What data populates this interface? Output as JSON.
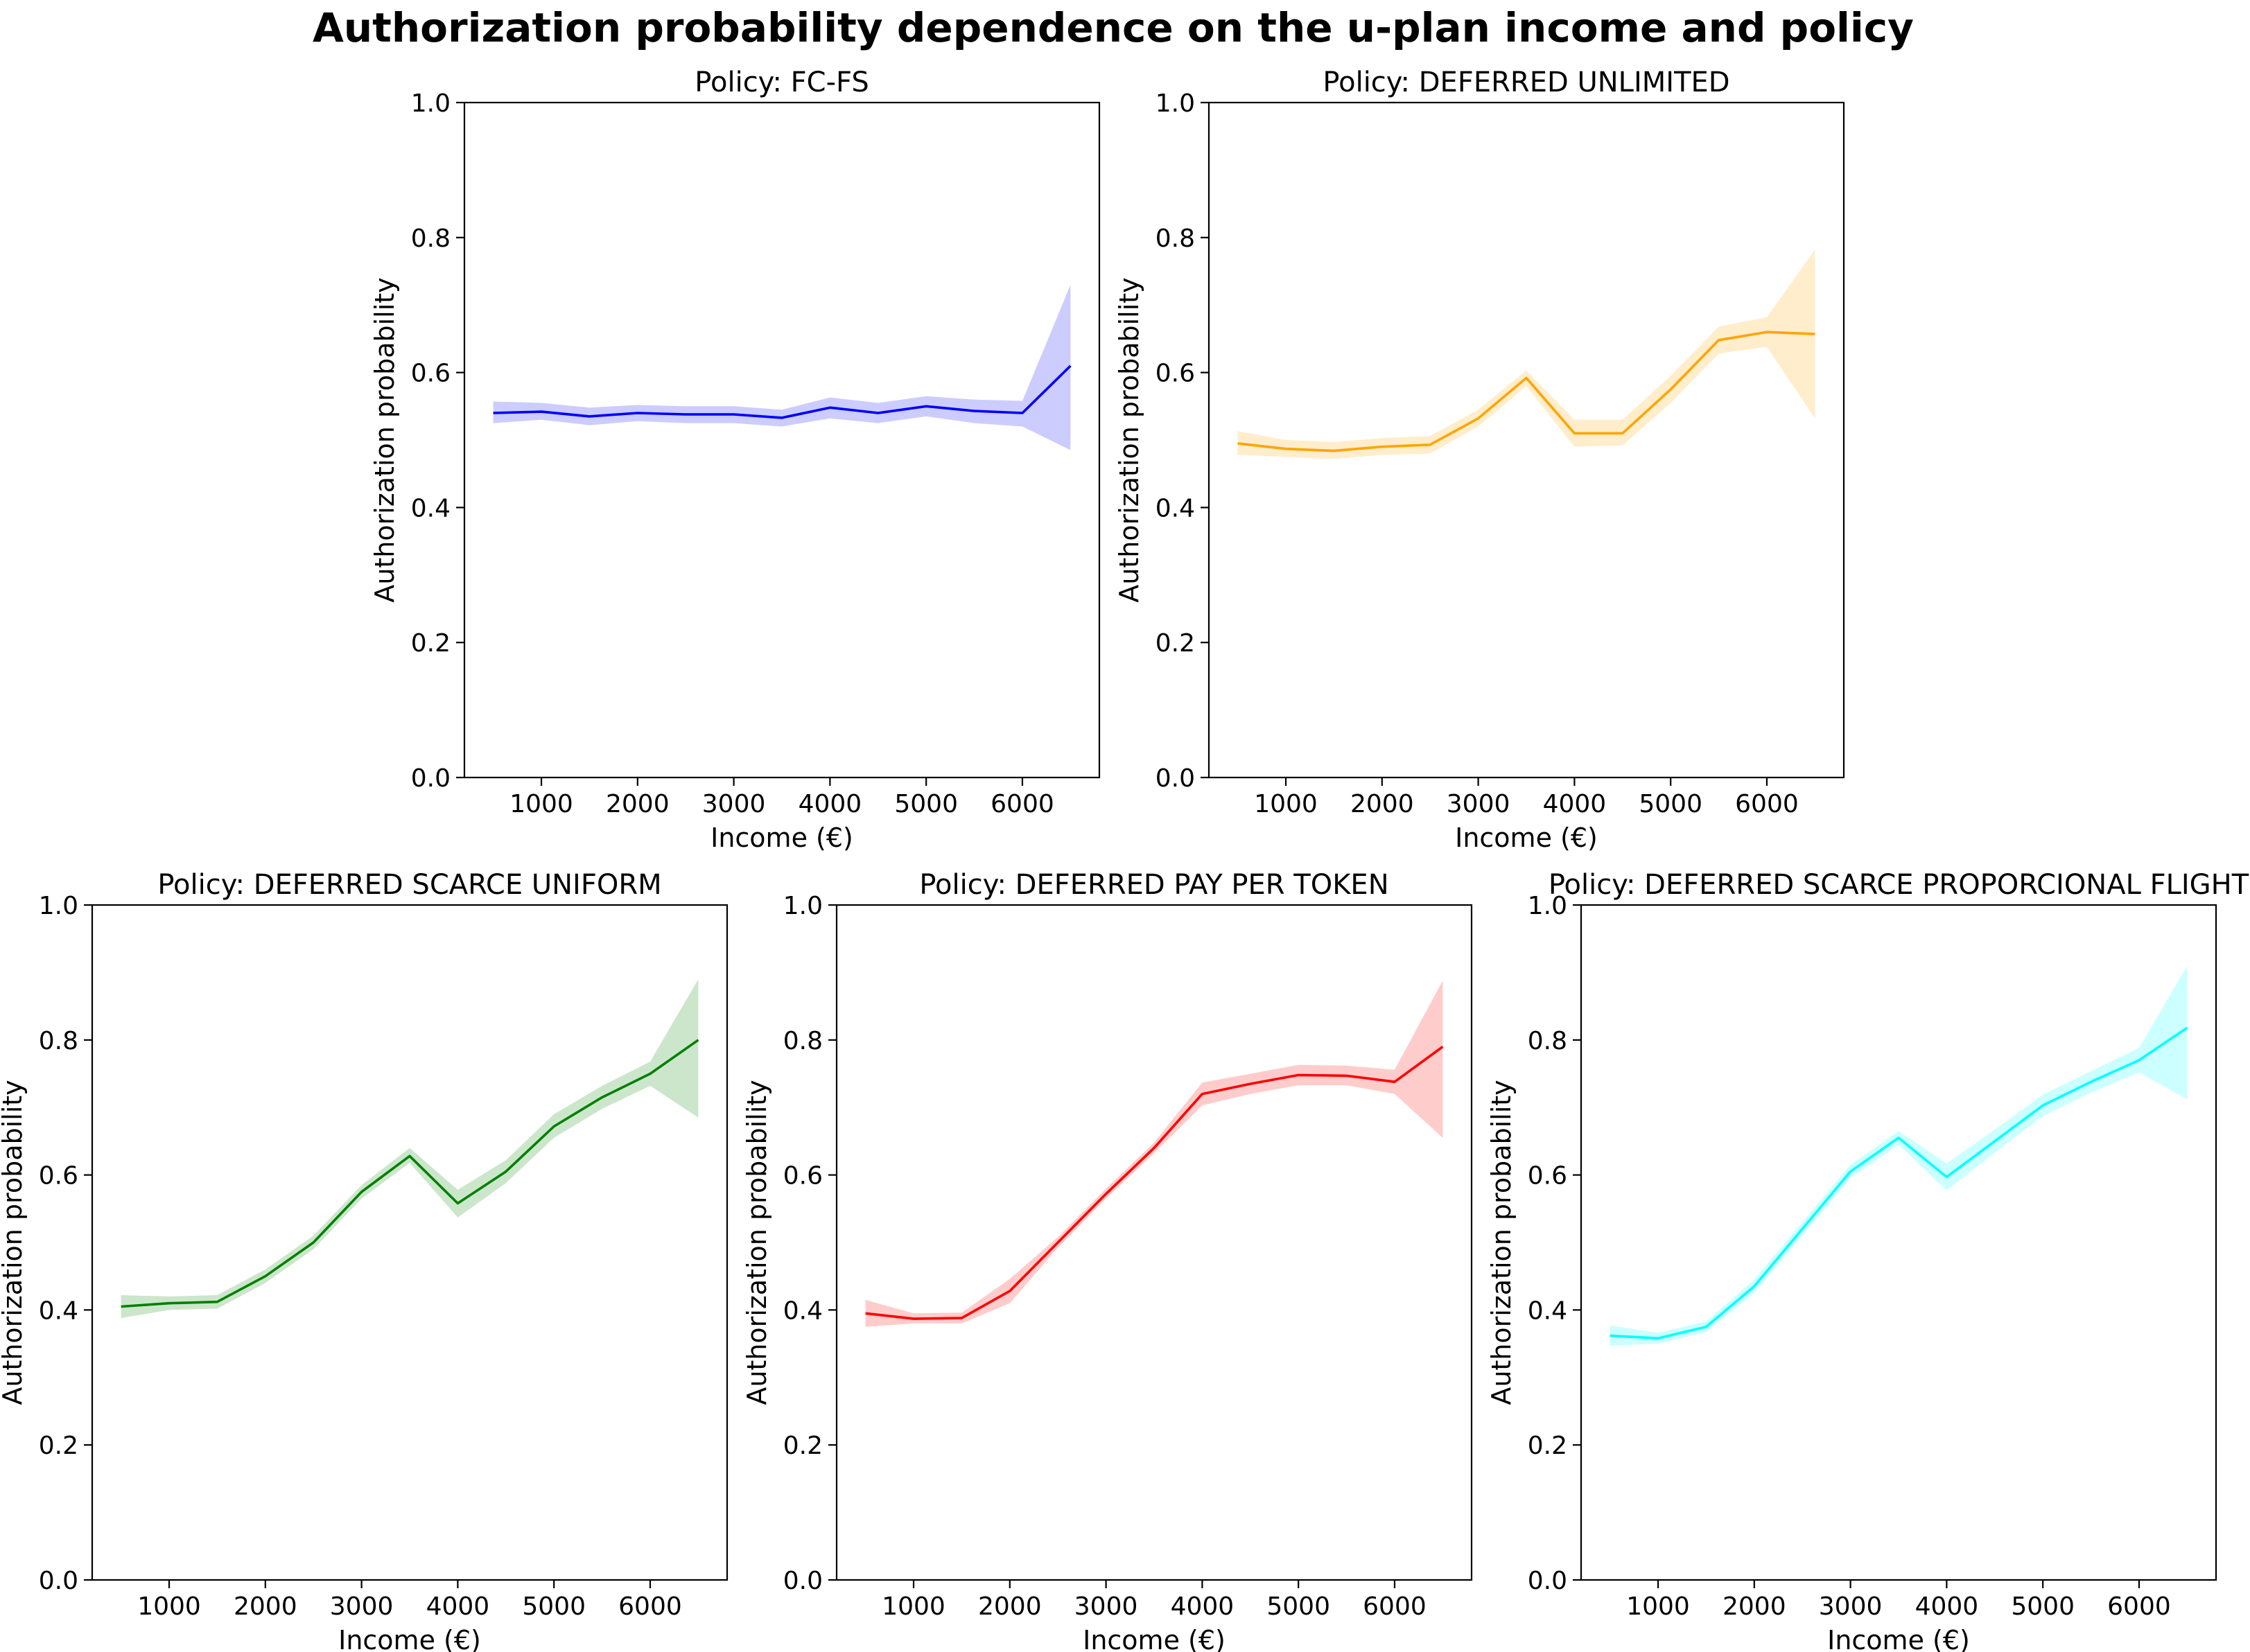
{
  "figure_title": "Authorization probability dependence on the u-plan income and policy",
  "chart_data": [
    {
      "type": "line",
      "title": "Policy: FC-FS",
      "xlabel": "Income (€)",
      "ylabel": "Authorization probability",
      "xlim": [
        200,
        6800
      ],
      "ylim": [
        0.0,
        1.0
      ],
      "xticks": [
        1000,
        2000,
        3000,
        4000,
        5000,
        6000
      ],
      "yticks": [
        "0.0",
        "0.2",
        "0.4",
        "0.6",
        "0.8",
        "1.0"
      ],
      "color": "#0000ff",
      "series": [
        {
          "name": "FC-FS",
          "x": [
            500,
            1000,
            1500,
            2000,
            2500,
            3000,
            3500,
            4000,
            4500,
            5000,
            5500,
            6000,
            6500
          ],
          "y": [
            0.54,
            0.542,
            0.535,
            0.54,
            0.538,
            0.538,
            0.533,
            0.548,
            0.54,
            0.55,
            0.543,
            0.54,
            0.61
          ],
          "lower": [
            0.525,
            0.53,
            0.522,
            0.528,
            0.525,
            0.525,
            0.52,
            0.532,
            0.525,
            0.535,
            0.525,
            0.52,
            0.485
          ],
          "upper": [
            0.557,
            0.555,
            0.548,
            0.552,
            0.55,
            0.55,
            0.545,
            0.563,
            0.555,
            0.565,
            0.56,
            0.558,
            0.73
          ]
        }
      ]
    },
    {
      "type": "line",
      "title": "Policy: DEFERRED UNLIMITED",
      "xlabel": "Income (€)",
      "ylabel": "Authorization probability",
      "xlim": [
        200,
        6800
      ],
      "ylim": [
        0.0,
        1.0
      ],
      "xticks": [
        1000,
        2000,
        3000,
        4000,
        5000,
        6000
      ],
      "yticks": [
        "0.0",
        "0.2",
        "0.4",
        "0.6",
        "0.8",
        "1.0"
      ],
      "color": "#ffa500",
      "series": [
        {
          "name": "DEFERRED UNLIMITED",
          "x": [
            500,
            1000,
            1500,
            2000,
            2500,
            3000,
            3500,
            4000,
            4500,
            5000,
            5500,
            6000,
            6500
          ],
          "y": [
            0.495,
            0.487,
            0.484,
            0.49,
            0.493,
            0.532,
            0.592,
            0.51,
            0.51,
            0.575,
            0.648,
            0.66,
            0.657
          ],
          "lower": [
            0.478,
            0.475,
            0.472,
            0.478,
            0.48,
            0.52,
            0.58,
            0.49,
            0.492,
            0.555,
            0.628,
            0.638,
            0.532
          ],
          "upper": [
            0.513,
            0.5,
            0.497,
            0.503,
            0.506,
            0.545,
            0.603,
            0.53,
            0.53,
            0.595,
            0.668,
            0.682,
            0.782
          ]
        }
      ]
    },
    {
      "type": "line",
      "title": "Policy: DEFERRED SCARCE UNIFORM",
      "xlabel": "Income (€)",
      "ylabel": "Authorization probability",
      "xlim": [
        200,
        6800
      ],
      "ylim": [
        0.0,
        1.0
      ],
      "xticks": [
        1000,
        2000,
        3000,
        4000,
        5000,
        6000
      ],
      "yticks": [
        "0.0",
        "0.2",
        "0.4",
        "0.6",
        "0.8",
        "1.0"
      ],
      "color": "#008000",
      "series": [
        {
          "name": "DEFERRED SCARCE UNIFORM",
          "x": [
            500,
            1000,
            1500,
            2000,
            2500,
            3000,
            3500,
            4000,
            4500,
            5000,
            5500,
            6000,
            6500
          ],
          "y": [
            0.405,
            0.41,
            0.412,
            0.45,
            0.5,
            0.575,
            0.628,
            0.558,
            0.605,
            0.672,
            0.715,
            0.75,
            0.8
          ],
          "lower": [
            0.388,
            0.4,
            0.402,
            0.44,
            0.49,
            0.565,
            0.618,
            0.537,
            0.588,
            0.655,
            0.698,
            0.732,
            0.685
          ],
          "upper": [
            0.422,
            0.42,
            0.422,
            0.46,
            0.51,
            0.585,
            0.64,
            0.578,
            0.622,
            0.69,
            0.732,
            0.768,
            0.89
          ]
        }
      ]
    },
    {
      "type": "line",
      "title": "Policy: DEFERRED PAY PER TOKEN",
      "xlabel": "Income (€)",
      "ylabel": "Authorization probability",
      "xlim": [
        200,
        6800
      ],
      "ylim": [
        0.0,
        1.0
      ],
      "xticks": [
        1000,
        2000,
        3000,
        4000,
        5000,
        6000
      ],
      "yticks": [
        "0.0",
        "0.2",
        "0.4",
        "0.6",
        "0.8",
        "1.0"
      ],
      "color": "#ff0000",
      "series": [
        {
          "name": "DEFERRED PAY PER TOKEN",
          "x": [
            500,
            1000,
            1500,
            2000,
            2500,
            3000,
            3500,
            4000,
            4500,
            5000,
            5500,
            6000,
            6500
          ],
          "y": [
            0.395,
            0.387,
            0.388,
            0.428,
            0.5,
            0.572,
            0.64,
            0.72,
            0.735,
            0.748,
            0.747,
            0.738,
            0.79
          ],
          "lower": [
            0.375,
            0.38,
            0.38,
            0.41,
            0.492,
            0.565,
            0.632,
            0.703,
            0.72,
            0.733,
            0.733,
            0.72,
            0.655
          ],
          "upper": [
            0.415,
            0.395,
            0.396,
            0.446,
            0.508,
            0.58,
            0.648,
            0.737,
            0.75,
            0.763,
            0.762,
            0.756,
            0.888
          ]
        }
      ]
    },
    {
      "type": "line",
      "title": "Policy: DEFERRED SCARCE PROPORCIONAL FLIGHT",
      "xlabel": "Income (€)",
      "ylabel": "Authorization probability",
      "xlim": [
        200,
        6800
      ],
      "ylim": [
        0.0,
        1.0
      ],
      "xticks": [
        1000,
        2000,
        3000,
        4000,
        5000,
        6000
      ],
      "yticks": [
        "0.0",
        "0.2",
        "0.4",
        "0.6",
        "0.8",
        "1.0"
      ],
      "color": "#00ffff",
      "series": [
        {
          "name": "DEFERRED SCARCE PROPORCIONAL FLIGHT",
          "x": [
            500,
            1000,
            1500,
            2000,
            2500,
            3000,
            3500,
            4000,
            4500,
            5000,
            5500,
            6000,
            6500
          ],
          "y": [
            0.362,
            0.358,
            0.375,
            0.435,
            0.52,
            0.605,
            0.655,
            0.597,
            0.65,
            0.703,
            0.738,
            0.77,
            0.818
          ],
          "lower": [
            0.347,
            0.35,
            0.367,
            0.425,
            0.51,
            0.595,
            0.645,
            0.577,
            0.633,
            0.687,
            0.722,
            0.752,
            0.712
          ],
          "upper": [
            0.377,
            0.366,
            0.383,
            0.445,
            0.53,
            0.615,
            0.665,
            0.617,
            0.667,
            0.719,
            0.754,
            0.788,
            0.91
          ]
        }
      ]
    }
  ]
}
